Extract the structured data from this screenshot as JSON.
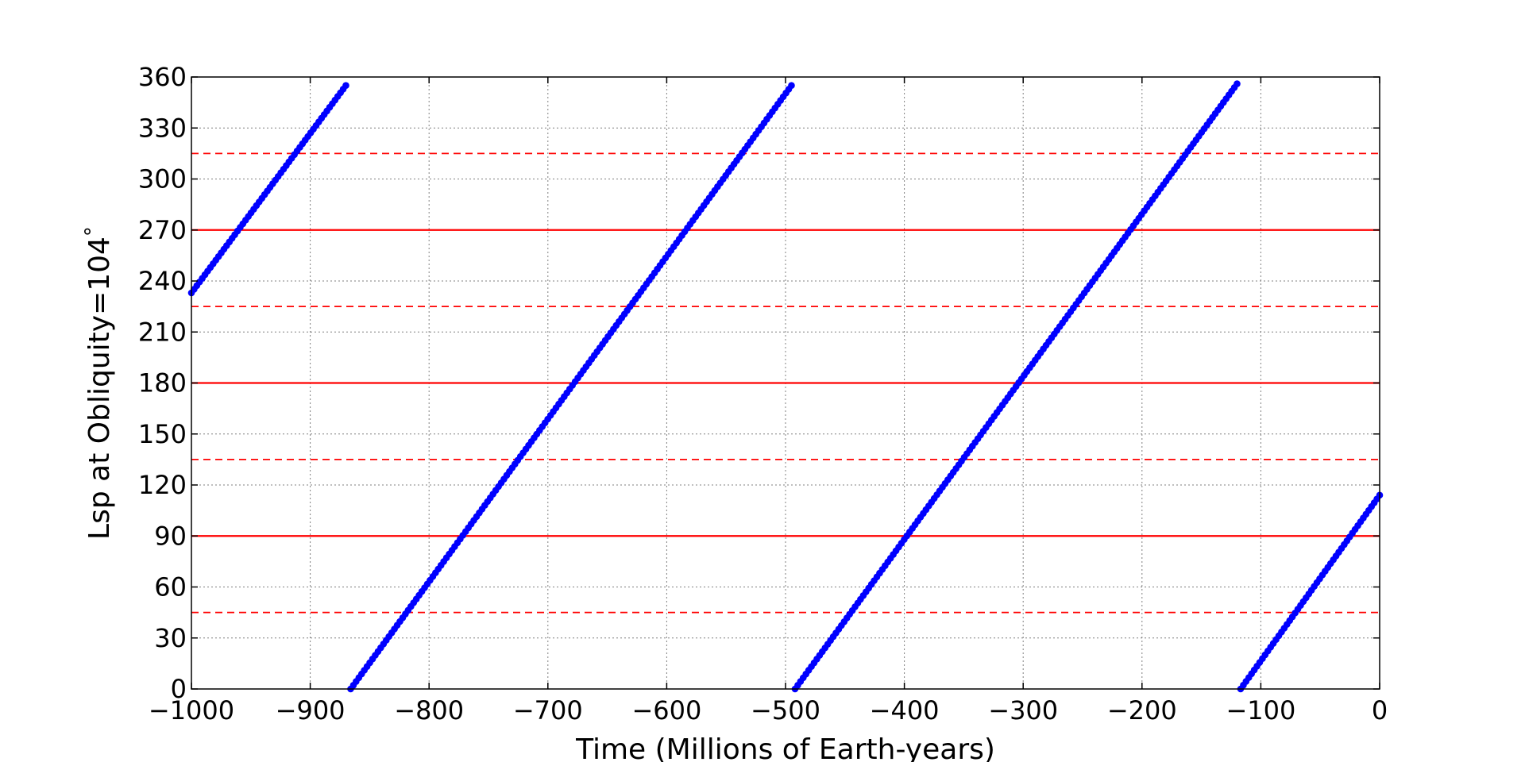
{
  "chart_data": {
    "type": "scatter",
    "title": "",
    "xlabel": "Time (Millions of Earth-years)",
    "ylabel": "Lsp at Obliquity=104",
    "ylabel_suffix": "°",
    "xlim": [
      -1000,
      0
    ],
    "ylim": [
      0,
      360
    ],
    "xticks": [
      -1000,
      -900,
      -800,
      -700,
      -600,
      -500,
      -400,
      -300,
      -200,
      -100,
      0
    ],
    "xtick_labels": [
      "−1000",
      "−900",
      "−800",
      "−700",
      "−600",
      "−500",
      "−400",
      "−300",
      "−200",
      "−100",
      "0"
    ],
    "yticks": [
      0,
      30,
      60,
      90,
      120,
      150,
      180,
      210,
      240,
      270,
      300,
      330,
      360
    ],
    "ytick_labels": [
      "0",
      "30",
      "60",
      "90",
      "120",
      "150",
      "180",
      "210",
      "240",
      "270",
      "300",
      "330",
      "360"
    ],
    "grid": true,
    "series": [
      {
        "segments": [
          {
            "x_start": -1000,
            "y_start": 233,
            "x_end": -870,
            "y_end": 355
          },
          {
            "x_start": -866,
            "y_start": 0,
            "x_end": -495,
            "y_end": 355
          },
          {
            "x_start": -492,
            "y_start": 0,
            "x_end": -120,
            "y_end": 356
          },
          {
            "x_start": -117,
            "y_start": 0,
            "x_end": 0,
            "y_end": 114
          }
        ],
        "color": "#0000ff",
        "marker": "circle"
      }
    ],
    "reference_lines": [
      {
        "y": 90,
        "style": "solid",
        "color": "#ff0000"
      },
      {
        "y": 180,
        "style": "solid",
        "color": "#ff0000"
      },
      {
        "y": 270,
        "style": "solid",
        "color": "#ff0000"
      },
      {
        "y": 45,
        "style": "dashed",
        "color": "#ff0000"
      },
      {
        "y": 135,
        "style": "dashed",
        "color": "#ff0000"
      },
      {
        "y": 225,
        "style": "dashed",
        "color": "#ff0000"
      },
      {
        "y": 315,
        "style": "dashed",
        "color": "#ff0000"
      }
    ]
  }
}
